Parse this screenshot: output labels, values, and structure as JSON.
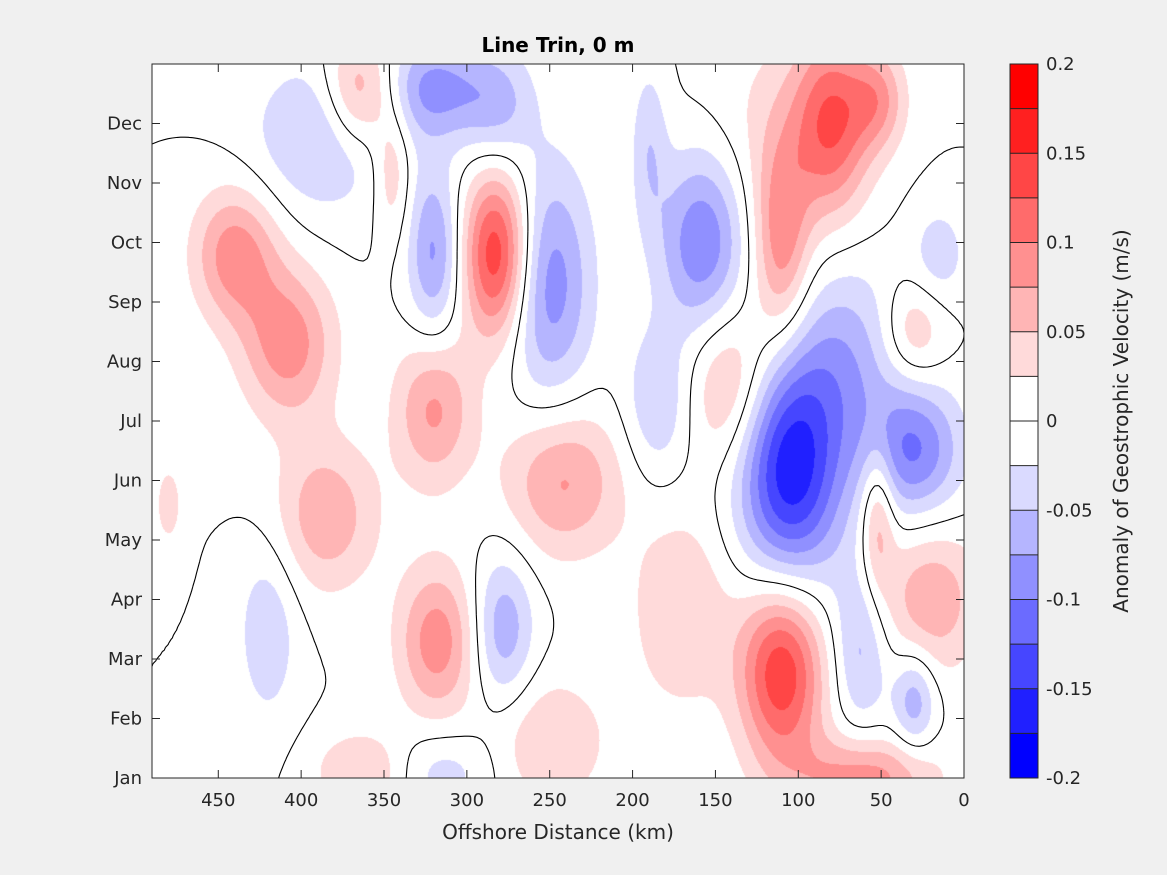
{
  "chart_data": {
    "type": "heatmap",
    "title": "Line Trin, 0 m",
    "xlabel": "Offshore Distance (km)",
    "ylabel": "",
    "xlim": [
      490,
      0
    ],
    "x_reversed": true,
    "xticks": [
      450,
      400,
      350,
      300,
      250,
      200,
      150,
      100,
      50,
      0
    ],
    "ylim": [
      1,
      13
    ],
    "yticks": [
      {
        "v": 1,
        "label": "Jan"
      },
      {
        "v": 2,
        "label": "Feb"
      },
      {
        "v": 3,
        "label": "Mar"
      },
      {
        "v": 4,
        "label": "Apr"
      },
      {
        "v": 5,
        "label": "May"
      },
      {
        "v": 6,
        "label": "Jun"
      },
      {
        "v": 7,
        "label": "Jul"
      },
      {
        "v": 8,
        "label": "Aug"
      },
      {
        "v": 9,
        "label": "Sep"
      },
      {
        "v": 10,
        "label": "Oct"
      },
      {
        "v": 11,
        "label": "Nov"
      },
      {
        "v": 12,
        "label": "Dec"
      }
    ],
    "grid": false,
    "zero_contour": true,
    "colorbar": {
      "label": "Anomaly of Geostrophic Velocity (m/s)",
      "range": [
        -0.2,
        0.2
      ],
      "levels": 16,
      "ticks": [
        {
          "v": 0.2,
          "label": "0.2"
        },
        {
          "v": 0.15,
          "label": "0.15"
        },
        {
          "v": 0.1,
          "label": "0.1"
        },
        {
          "v": 0.05,
          "label": "0.05"
        },
        {
          "v": 0,
          "label": "0"
        },
        {
          "v": -0.05,
          "label": "-0.05"
        },
        {
          "v": -0.1,
          "label": "-0.1"
        },
        {
          "v": -0.15,
          "label": "-0.15"
        },
        {
          "v": -0.2,
          "label": "-0.2"
        }
      ],
      "colors": [
        "#0000ff",
        "#2020ff",
        "#4646ff",
        "#6b6bff",
        "#9090ff",
        "#b5b5ff",
        "#dadaff",
        "#ffffff",
        "#ffffff",
        "#ffdada",
        "#ffb5b5",
        "#ff9090",
        "#ff6b6b",
        "#ff4646",
        "#ff2020",
        "#ff0000"
      ]
    },
    "features": [
      {
        "x": 440,
        "y": 9.8,
        "sx": 18,
        "sy": 0.8,
        "a": 0.09
      },
      {
        "x": 408,
        "y": 8.3,
        "sx": 20,
        "sy": 0.9,
        "a": 0.09
      },
      {
        "x": 385,
        "y": 11.8,
        "sx": 30,
        "sy": 0.9,
        "a": -0.06
      },
      {
        "x": 365,
        "y": 12.5,
        "sx": 15,
        "sy": 0.7,
        "a": 0.09
      },
      {
        "x": 345,
        "y": 11.2,
        "sx": 8,
        "sy": 0.8,
        "a": 0.05
      },
      {
        "x": 320,
        "y": 12.6,
        "sx": 20,
        "sy": 0.6,
        "a": -0.08
      },
      {
        "x": 282,
        "y": 12.3,
        "sx": 16,
        "sy": 0.7,
        "a": -0.06
      },
      {
        "x": 320,
        "y": 9.8,
        "sx": 11,
        "sy": 1.0,
        "a": -0.08
      },
      {
        "x": 282,
        "y": 9.8,
        "sx": 14,
        "sy": 1.0,
        "a": 0.15
      },
      {
        "x": 250,
        "y": 9.3,
        "sx": 18,
        "sy": 1.4,
        "a": -0.09
      },
      {
        "x": 320,
        "y": 7.2,
        "sx": 17,
        "sy": 0.9,
        "a": 0.08
      },
      {
        "x": 242,
        "y": 6.0,
        "sx": 25,
        "sy": 0.9,
        "a": 0.08
      },
      {
        "x": 385,
        "y": 5.4,
        "sx": 22,
        "sy": 0.9,
        "a": 0.07
      },
      {
        "x": 318,
        "y": 3.3,
        "sx": 17,
        "sy": 0.9,
        "a": 0.09
      },
      {
        "x": 278,
        "y": 3.5,
        "sx": 13,
        "sy": 0.9,
        "a": -0.07
      },
      {
        "x": 420,
        "y": 3.5,
        "sx": 13,
        "sy": 1.1,
        "a": -0.045
      },
      {
        "x": 250,
        "y": 1.6,
        "sx": 25,
        "sy": 0.8,
        "a": 0.05
      },
      {
        "x": 360,
        "y": 1.1,
        "sx": 22,
        "sy": 0.5,
        "a": 0.06
      },
      {
        "x": 320,
        "y": 1.1,
        "sx": 25,
        "sy": 0.5,
        "a": -0.045
      },
      {
        "x": 190,
        "y": 11.6,
        "sx": 8,
        "sy": 1.0,
        "a": -0.045
      },
      {
        "x": 158,
        "y": 10.0,
        "sx": 18,
        "sy": 1.1,
        "a": -0.1
      },
      {
        "x": 110,
        "y": 10.0,
        "sx": 12,
        "sy": 1.2,
        "a": 0.09
      },
      {
        "x": 80,
        "y": 12.0,
        "sx": 16,
        "sy": 1.1,
        "a": 0.11
      },
      {
        "x": 52,
        "y": 12.4,
        "sx": 12,
        "sy": 0.6,
        "a": 0.07
      },
      {
        "x": 140,
        "y": 7.6,
        "sx": 18,
        "sy": 1.0,
        "a": 0.07
      },
      {
        "x": 105,
        "y": 6.2,
        "sx": 22,
        "sy": 1.4,
        "a": -0.17
      },
      {
        "x": 70,
        "y": 8.0,
        "sx": 22,
        "sy": 1.2,
        "a": -0.06
      },
      {
        "x": 30,
        "y": 6.5,
        "sx": 20,
        "sy": 0.8,
        "a": -0.1
      },
      {
        "x": 52,
        "y": 5.4,
        "sx": 7,
        "sy": 0.9,
        "a": 0.07
      },
      {
        "x": 30,
        "y": 8.5,
        "sx": 13,
        "sy": 0.6,
        "a": 0.05
      },
      {
        "x": 20,
        "y": 4.0,
        "sx": 22,
        "sy": 0.9,
        "a": 0.07
      },
      {
        "x": 110,
        "y": 2.8,
        "sx": 18,
        "sy": 1.1,
        "a": 0.15
      },
      {
        "x": 170,
        "y": 3.8,
        "sx": 22,
        "sy": 1.2,
        "a": 0.05
      },
      {
        "x": 62,
        "y": 3.2,
        "sx": 12,
        "sy": 1.0,
        "a": -0.06
      },
      {
        "x": 30,
        "y": 2.3,
        "sx": 9,
        "sy": 0.6,
        "a": -0.07
      },
      {
        "x": 60,
        "y": 1.0,
        "sx": 30,
        "sy": 0.5,
        "a": 0.09
      },
      {
        "x": 185,
        "y": 7.3,
        "sx": 14,
        "sy": 0.9,
        "a": -0.05
      },
      {
        "x": 480,
        "y": 5.6,
        "sx": 6,
        "sy": 0.5,
        "a": 0.04
      },
      {
        "x": 15,
        "y": 9.8,
        "sx": 12,
        "sy": 0.6,
        "a": -0.04
      },
      {
        "x": 110,
        "y": 12.0,
        "sx": 35,
        "sy": 1.2,
        "a": 0.03
      }
    ]
  }
}
